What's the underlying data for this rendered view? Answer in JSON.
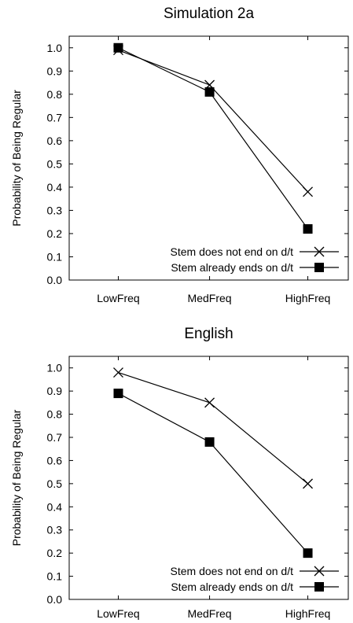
{
  "chart_data": [
    {
      "type": "line",
      "title": "Simulation 2a",
      "xlabel": "",
      "ylabel": "Probability of Being Regular",
      "categories": [
        "LowFreq",
        "MedFreq",
        "HighFreq"
      ],
      "ylim": [
        0.0,
        1.05
      ],
      "yticks": [
        "0.0",
        "0.1",
        "0.2",
        "0.3",
        "0.4",
        "0.5",
        "0.6",
        "0.7",
        "0.8",
        "0.9",
        "1.0"
      ],
      "grid": false,
      "legend_position": "bottom-right",
      "series": [
        {
          "name": "Stem does not end on d/t",
          "marker": "x",
          "values": [
            0.99,
            0.84,
            0.38
          ]
        },
        {
          "name": "Stem already ends on d/t",
          "marker": "filled-square",
          "values": [
            1.0,
            0.81,
            0.22
          ]
        }
      ]
    },
    {
      "type": "line",
      "title": "English",
      "xlabel": "",
      "ylabel": "Probability of Being Regular",
      "categories": [
        "LowFreq",
        "MedFreq",
        "HighFreq"
      ],
      "ylim": [
        0.0,
        1.05
      ],
      "yticks": [
        "0.0",
        "0.1",
        "0.2",
        "0.3",
        "0.4",
        "0.5",
        "0.6",
        "0.7",
        "0.8",
        "0.9",
        "1.0"
      ],
      "grid": false,
      "legend_position": "bottom-right",
      "series": [
        {
          "name": "Stem does not end on d/t",
          "marker": "x",
          "values": [
            0.98,
            0.85,
            0.5
          ]
        },
        {
          "name": "Stem already ends on d/t",
          "marker": "filled-square",
          "values": [
            0.89,
            0.68,
            0.2
          ]
        }
      ]
    }
  ]
}
